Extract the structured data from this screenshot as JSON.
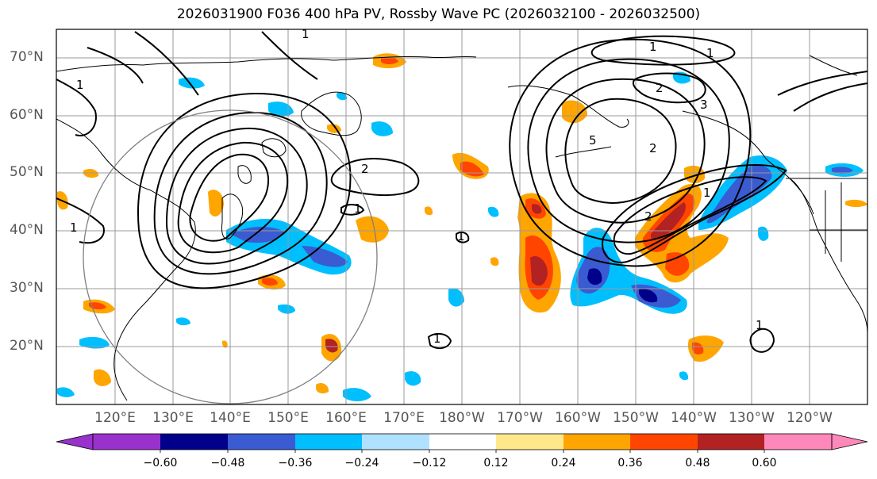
{
  "title": "2026031900 F036 400 hPa PV, Rossby Wave PC (2026032100 - 2026032500)",
  "lat_labels": [
    "70°N",
    "60°N",
    "50°N",
    "40°N",
    "30°N",
    "20°N"
  ],
  "lon_labels": [
    "120°E",
    "130°E",
    "140°E",
    "150°E",
    "160°E",
    "170°E",
    "180°W",
    "170°W",
    "160°W",
    "150°W",
    "140°W",
    "130°W",
    "120°W"
  ],
  "colorbar": {
    "ticks": [
      "−0.60",
      "−0.48",
      "−0.36",
      "−0.24",
      "−0.12",
      "0.12",
      "0.24",
      "0.36",
      "0.48",
      "0.60"
    ],
    "colors": [
      "#9932cc",
      "#00008b",
      "#3a5bd1",
      "#00bfff",
      "#b0e2ff",
      "#ffffff",
      "#ffe88a",
      "#ffa500",
      "#ff4500",
      "#b22222",
      "#ff88bb"
    ]
  },
  "contour_labels": [
    "1",
    "1",
    "1",
    "1",
    "1",
    "1",
    "1",
    "1",
    "2",
    "2",
    "2",
    "2",
    "3",
    "5",
    "1",
    "1"
  ]
}
